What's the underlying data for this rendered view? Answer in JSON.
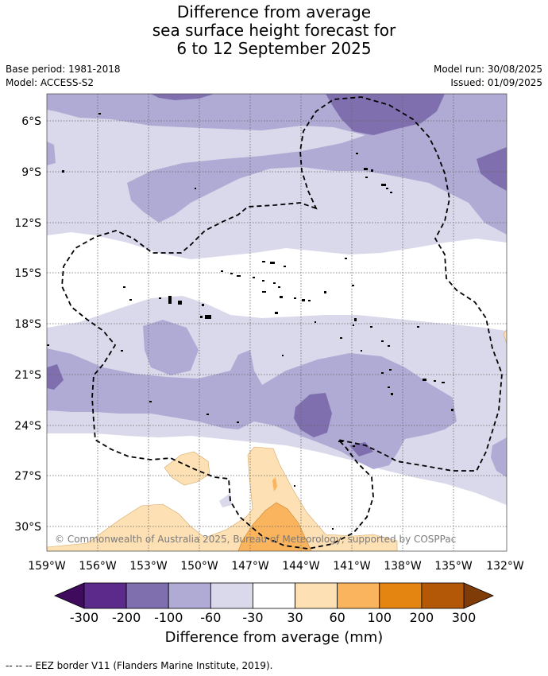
{
  "title": {
    "line1": "Difference from average",
    "line2": "sea surface height forecast for",
    "line3": "6 to 12 September 2025"
  },
  "meta": {
    "base_period": "Base period: 1981-2018",
    "model": "Model: ACCESS-S2",
    "model_run": "Model run: 30/08/2025",
    "issued": "Issued: 01/09/2025"
  },
  "map": {
    "lat_ticks": [
      "6°S",
      "9°S",
      "12°S",
      "15°S",
      "18°S",
      "21°S",
      "24°S",
      "27°S",
      "30°S"
    ],
    "lon_ticks": [
      "159°W",
      "156°W",
      "153°W",
      "150°W",
      "147°W",
      "144°W",
      "141°W",
      "138°W",
      "135°W",
      "132°W"
    ],
    "copyright": "© Commonwealth of Australia 2025, Bureau of Meteorology, supported by COSPPac",
    "gridlines": true,
    "lat_range": [
      -31.5,
      -4.5
    ],
    "lon_range": [
      -159,
      -132
    ]
  },
  "colorbar": {
    "label": "Difference from average (mm)",
    "ticks": [
      "-300",
      "-200",
      "-100",
      "-60",
      "-30",
      "30",
      "60",
      "100",
      "200",
      "300"
    ],
    "colors": [
      "#3f0b5c",
      "#5b2a8a",
      "#7f6fae",
      "#b0abd4",
      "#d9d9eb",
      "#ffffff",
      "#fde0b4",
      "#fbb45e",
      "#e48512",
      "#b35806",
      "#7f3b08"
    ]
  },
  "footer": "--  --  -- EEZ border V11 (Flanders Marine Institute, 2019)."
}
